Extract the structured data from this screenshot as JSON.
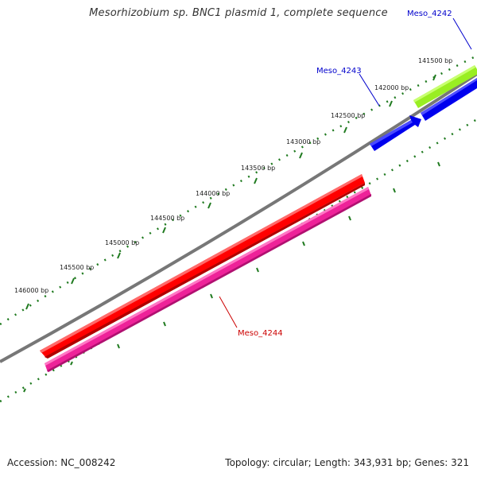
{
  "title": "Mesorhizobium sp. BNC1 plasmid 1, complete sequence",
  "footer": {
    "accession": "Accession: NC_008242",
    "info": "Topology: circular; Length: 343,931 bp; Genes: 321"
  },
  "colors": {
    "backbone": "#777777",
    "tick": "#1f7a1f",
    "reverse_blue": "#0000ee",
    "green_feature": "#99ee22",
    "red_feature": "#ff0000",
    "pink_feature": "#ee2299",
    "blue_label": "#0000cc",
    "red_label": "#cc0000"
  },
  "ticks": [
    {
      "label": "141500 bp"
    },
    {
      "label": "142000 bp"
    },
    {
      "label": "142500 bp"
    },
    {
      "label": "143000 bp"
    },
    {
      "label": "143500 bp"
    },
    {
      "label": "144000 bp"
    },
    {
      "label": "144500 bp"
    },
    {
      "label": "145000 bp"
    },
    {
      "label": "145500 bp"
    },
    {
      "label": "146000 bp"
    }
  ],
  "genes": [
    {
      "id": "Meso_4242",
      "color": "blue"
    },
    {
      "id": "Meso_4243",
      "color": "blue"
    },
    {
      "id": "Meso_4244",
      "color": "red"
    }
  ]
}
